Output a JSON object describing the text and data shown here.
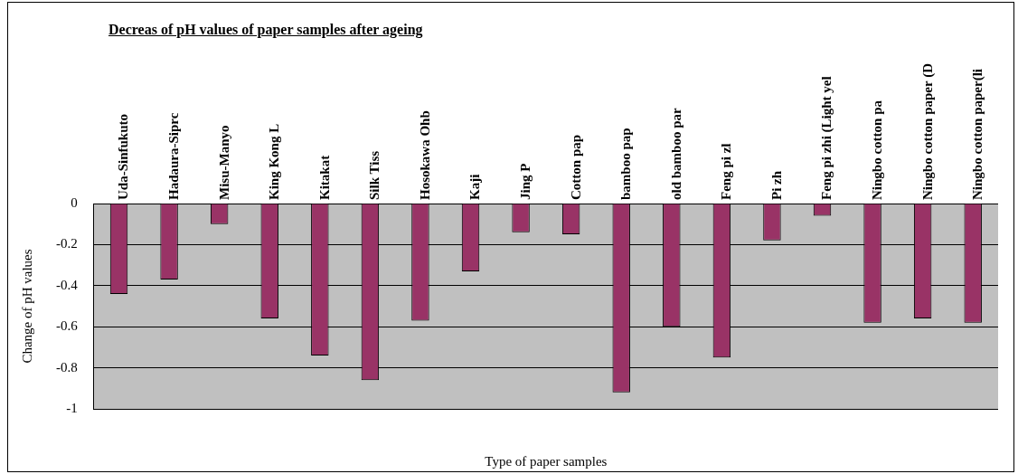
{
  "chart_data": {
    "type": "bar",
    "title": "Decreas of pH values of paper samples after ageing",
    "xlabel": "Type of paper samples",
    "ylabel": "Change of pH values",
    "categories": [
      "Uda-Sinfukuto",
      "Hadaura-Siprc",
      "Misu-Manyo",
      "King Kong L",
      "Kitakat",
      "Silk Tiss",
      "Hosokawa Ohb",
      "Kaji",
      "Jing P",
      "Cotton pap",
      "bamboo pap",
      "old bamboo par",
      "Feng pi zl",
      "Pi zh",
      "Feng pi zhi (Light yel",
      "Ningbo cotton pa",
      "Ningbo cotton paper (D",
      "Ningbo cotton paper(li"
    ],
    "values": [
      -0.44,
      -0.37,
      -0.1,
      -0.56,
      -0.74,
      -0.86,
      -0.57,
      -0.33,
      -0.14,
      -0.15,
      -0.92,
      -0.6,
      -0.75,
      -0.18,
      -0.06,
      -0.58,
      -0.56,
      -0.58
    ],
    "color": "#993366",
    "ylim": [
      -1,
      0
    ],
    "yticks": [
      -1,
      -0.8,
      -0.6,
      -0.4,
      -0.2,
      0
    ],
    "grid": "y",
    "legend": false
  }
}
